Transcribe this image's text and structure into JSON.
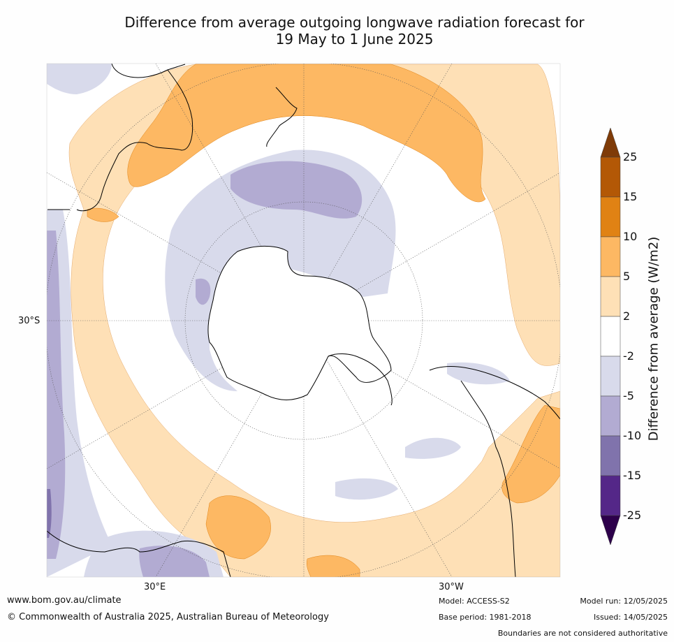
{
  "title": {
    "line1": "Difference from average outgoing longwave radiation forecast for",
    "line2": "19 May to 1 June 2025"
  },
  "map": {
    "projection": "south-polar-stereographic",
    "lat_label_left": "30°S",
    "lon_label_left": "30°E",
    "lon_label_right": "30°W"
  },
  "colorbar": {
    "title": "Difference from average (W/m2)",
    "levels": [
      "25",
      "15",
      "10",
      "5",
      "2",
      "-2",
      "-5",
      "-10",
      "-15",
      "-25"
    ],
    "colors": {
      "over": "#7f3b08",
      "b15_25": "#b35806",
      "b10_15": "#e08214",
      "b5_10": "#fdb863",
      "b2_5": "#fee0b6",
      "bneutral": "#ffffff",
      "bm2_m5": "#d8daeb",
      "bm5_m10": "#b2abd2",
      "bm10_m15": "#8073ac",
      "bm15_m25": "#542788",
      "under": "#2d004b"
    }
  },
  "footer": {
    "website": "www.bom.gov.au/climate",
    "copyright": "© Commonwealth of Australia 2025, Australian Bureau of Meteorology",
    "model": "Model: ACCESS-S2",
    "base_period": "Base period: 1981-2018",
    "model_run": "Model run: 12/05/2025",
    "issued": "Issued: 14/05/2025",
    "disclaimer": "Boundaries are not considered authoritative"
  }
}
